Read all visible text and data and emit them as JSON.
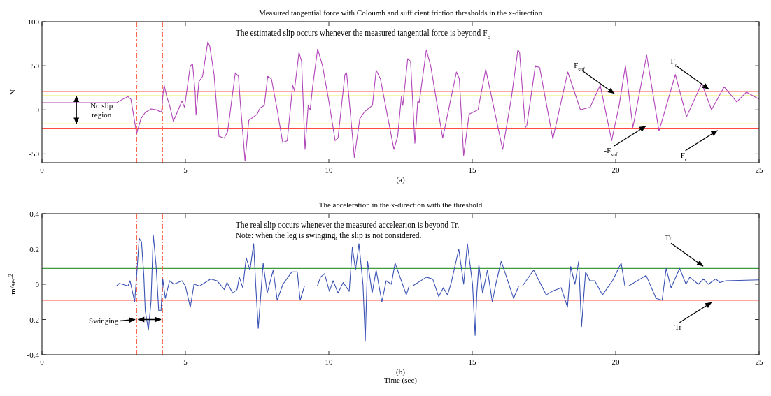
{
  "chart_data": [
    {
      "type": "line",
      "title": "Measured tangential force with Coloumb and sufficient friction thresholds in the x-direction",
      "subtitle": "(a)",
      "ylabel": "N",
      "xlim": [
        0,
        25
      ],
      "ylim": [
        -60,
        100
      ],
      "xticks": [
        0,
        5,
        10,
        15,
        20,
        25
      ],
      "yticks": [
        -50,
        0,
        50,
        100
      ],
      "series": [
        {
          "color": "#b044b8",
          "x": [
            0,
            2.6,
            2.7,
            3.0,
            3.1,
            3.3,
            3.45,
            3.6,
            3.8,
            4.0,
            4.1,
            4.17,
            4.22,
            4.26,
            4.35,
            4.45,
            4.58,
            4.88,
            4.97,
            5.17,
            5.25,
            5.34,
            5.37,
            5.47,
            5.6,
            5.78,
            5.85,
            6.0,
            6.17,
            6.35,
            6.47,
            6.74,
            6.85,
            6.91,
            7.08,
            7.21,
            7.5,
            7.6,
            7.75,
            7.87,
            8.0,
            8.2,
            8.39,
            8.55,
            8.74,
            8.8,
            8.96,
            9.05,
            9.17,
            9.28,
            9.35,
            9.43,
            9.61,
            9.78,
            10.0,
            10.22,
            10.32,
            10.56,
            10.62,
            10.74,
            10.89,
            11.08,
            11.25,
            11.52,
            11.65,
            11.8,
            12.27,
            12.4,
            12.53,
            12.58,
            12.75,
            12.85,
            13.0,
            13.1,
            13.15,
            13.4,
            13.55,
            13.97,
            14.45,
            14.55,
            14.7,
            14.89,
            15.2,
            15.47,
            16.06,
            16.37,
            16.59,
            16.65,
            16.85,
            16.9,
            17.2,
            17.35,
            17.81,
            18.33,
            18.77,
            19.11,
            19.46,
            19.86,
            20.12,
            20.34,
            20.6,
            21.08,
            21.51,
            22.08,
            22.47,
            23.0,
            23.34,
            23.78,
            24.22,
            24.56,
            25
          ],
          "values": [
            8,
            8,
            10,
            15,
            12,
            -27,
            -10,
            -3,
            1,
            0,
            -2,
            -2,
            18,
            28,
            15,
            5,
            -13,
            10,
            3,
            50,
            52,
            20,
            -6,
            32,
            38,
            77,
            72,
            40,
            -30,
            -32,
            -25,
            42,
            38,
            10,
            -58,
            -12,
            -5,
            2,
            5,
            38,
            35,
            0,
            -37,
            -35,
            28,
            22,
            65,
            55,
            -45,
            5,
            0,
            25,
            69,
            50,
            10,
            -35,
            -32,
            40,
            42,
            0,
            -54,
            -10,
            -2,
            5,
            45,
            35,
            -45,
            -30,
            15,
            5,
            58,
            55,
            -38,
            10,
            8,
            68,
            50,
            -32,
            43,
            35,
            -52,
            -5,
            0,
            46,
            -45,
            15,
            68,
            65,
            -20,
            -18,
            50,
            48,
            -33,
            43,
            0,
            3,
            28,
            -35,
            5,
            50,
            -20,
            62,
            -24,
            40,
            -8,
            30,
            0,
            26,
            9,
            20,
            12
          ]
        }
      ],
      "ref_lines": [
        {
          "axis": "y",
          "value": 21,
          "color": "#ff4b3e"
        },
        {
          "axis": "y",
          "value": 16,
          "color": "#eeee55"
        },
        {
          "axis": "y",
          "value": -16,
          "color": "#eeee55"
        },
        {
          "axis": "y",
          "value": -21,
          "color": "#ff4b3e"
        },
        {
          "axis": "x",
          "value": 3.3,
          "color": "#ff6a50",
          "line_style": "dashed"
        },
        {
          "axis": "x",
          "value": 4.2,
          "color": "#ff6a50",
          "line_style": "dashed"
        }
      ],
      "annotations": [
        "The estimated slip occurs whenever the measured tangential force is beyond F$_{c}$",
        {
          "text": "No slip region",
          "x": 1.2,
          "y": 16
        },
        {
          "text": "F$_{suf}$",
          "x": 20,
          "y": 16
        },
        {
          "text": "F$_{c}$",
          "x": 23.3,
          "y": 21
        },
        {
          "text": "-F$_{suf}$",
          "x": 21.1,
          "y": -16
        },
        {
          "text": "-F$_{c}$",
          "x": 23.6,
          "y": -21
        }
      ]
    },
    {
      "type": "line",
      "title": "The acceleration in the x-direction with the threshold",
      "subtitle": "(b)",
      "xlabel": "Time (sec)",
      "ylabel": "m/sec$^{2}$",
      "xlim": [
        0,
        25
      ],
      "ylim": [
        -0.4,
        0.4
      ],
      "xticks": [
        0,
        5,
        10,
        15,
        20,
        25
      ],
      "yticks": [
        -0.4,
        -0.2,
        0,
        0.2,
        0.4
      ],
      "series": [
        {
          "color": "#3a52b4",
          "x": [
            0,
            2.6,
            2.7,
            3.0,
            3.07,
            3.23,
            3.3,
            3.39,
            3.47,
            3.55,
            3.6,
            3.71,
            3.8,
            3.88,
            3.98,
            4.07,
            4.15,
            4.21,
            4.3,
            4.45,
            4.6,
            4.88,
            5.0,
            5.17,
            5.3,
            5.5,
            5.88,
            6.1,
            6.36,
            6.45,
            6.65,
            6.8,
            6.88,
            7.0,
            7.12,
            7.25,
            7.38,
            7.45,
            7.54,
            7.71,
            7.85,
            8.06,
            8.2,
            8.4,
            8.71,
            8.9,
            9.0,
            9.15,
            9.6,
            9.71,
            9.85,
            10.02,
            10.15,
            10.32,
            10.5,
            10.71,
            10.82,
            10.93,
            11.05,
            11.19,
            11.27,
            11.35,
            11.51,
            11.65,
            11.85,
            12.0,
            12.18,
            12.31,
            12.7,
            12.8,
            12.92,
            13.4,
            13.62,
            13.83,
            13.99,
            14.14,
            14.27,
            14.53,
            14.7,
            14.83,
            15.01,
            15.1,
            15.16,
            15.23,
            15.36,
            15.53,
            15.7,
            15.82,
            16.01,
            16.44,
            16.62,
            16.75,
            17.14,
            17.58,
            17.79,
            18.1,
            18.32,
            18.43,
            18.58,
            18.71,
            18.81,
            18.95,
            19.1,
            19.27,
            19.54,
            19.89,
            20.19,
            20.32,
            20.45,
            21.06,
            21.41,
            21.62,
            21.76,
            21.93,
            22.23,
            22.45,
            22.58,
            22.88,
            23.06,
            23.23,
            23.49,
            23.63,
            23.84,
            25
          ],
          "values": [
            -0.01,
            -0.01,
            0.005,
            -0.01,
            0.02,
            -0.1,
            0.05,
            0.26,
            0.24,
            0.05,
            -0.15,
            -0.26,
            -0.1,
            0.28,
            0.1,
            -0.15,
            -0.15,
            0.03,
            -0.08,
            0.02,
            0,
            0.02,
            -0.01,
            -0.13,
            0,
            -0.01,
            0.03,
            0.02,
            -0.03,
            0.01,
            -0.05,
            -0.03,
            0.04,
            -0.02,
            0.15,
            0.08,
            0.23,
            0,
            -0.25,
            0.12,
            -0.05,
            0.08,
            -0.09,
            0,
            0.07,
            0.07,
            -0.09,
            -0.01,
            -0.01,
            0.04,
            0.06,
            -0.04,
            0.02,
            -0.05,
            0.01,
            -0.04,
            0.21,
            0.08,
            0.23,
            0,
            -0.32,
            0.13,
            -0.05,
            0.08,
            -0.1,
            0.02,
            0,
            0.12,
            -0.06,
            -0.01,
            -0.01,
            0.04,
            0.03,
            -0.07,
            -0.02,
            -0.06,
            0.01,
            0.2,
            0,
            0.23,
            0,
            -0.29,
            -0.05,
            0.11,
            -0.05,
            0.08,
            -0.1,
            0,
            0.13,
            -0.08,
            -0.01,
            -0.01,
            0.08,
            -0.06,
            -0.04,
            -0.02,
            -0.13,
            0.1,
            0,
            0.13,
            -0.24,
            0.07,
            0.02,
            0.02,
            -0.06,
            0.02,
            0.12,
            -0.01,
            -0.01,
            0.05,
            -0.08,
            -0.09,
            0.09,
            -0.02,
            0.09,
            0,
            0.04,
            0,
            0.03,
            0,
            0.03,
            0.01,
            0.02,
            0.025
          ]
        }
      ],
      "ref_lines": [
        {
          "axis": "y",
          "value": 0.09,
          "color": "#3f9b3f"
        },
        {
          "axis": "y",
          "value": -0.09,
          "color": "#ff4b3e"
        },
        {
          "axis": "x",
          "value": 3.3,
          "color": "#ff6a50",
          "line_style": "dashed"
        },
        {
          "axis": "x",
          "value": 4.2,
          "color": "#ff6a50",
          "line_style": "dashed"
        }
      ],
      "annotations": [
        "The real slip occurs whenever the measured accelearion is beyond Tr.",
        "Note: when the leg is swinging, the slip is not considered.",
        {
          "text": "Swinging",
          "x": 3.3,
          "y": -0.2
        },
        {
          "text": "Tr",
          "x": 23.1,
          "y": 0.09
        },
        {
          "text": "-Tr",
          "x": 23.4,
          "y": -0.09
        }
      ]
    }
  ]
}
